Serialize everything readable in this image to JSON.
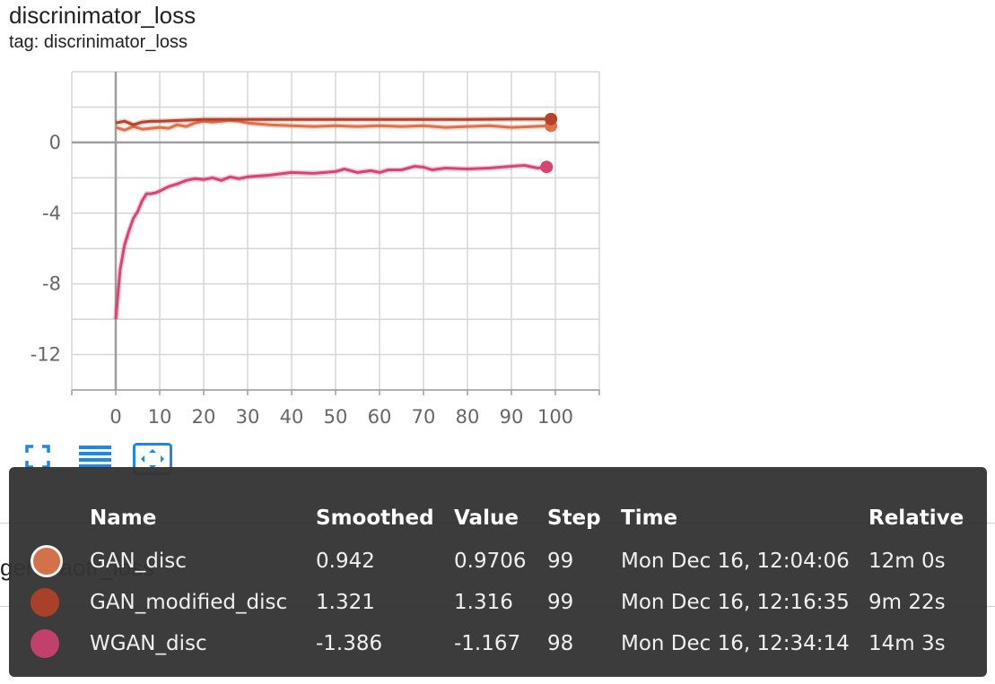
{
  "card": {
    "title": "discrinimator_loss",
    "subtitle": "tag: discrinimator_loss"
  },
  "next_card": {
    "title": "generaotr_loss"
  },
  "toolbar": {
    "icons": [
      "fullscreen-icon",
      "toggle-log-scale-icon",
      "fit-domain-icon"
    ],
    "accent": "#1e88e5"
  },
  "chart_data": {
    "type": "line",
    "title": "",
    "xlabel": "",
    "ylabel": "",
    "xlim": [
      -10,
      110
    ],
    "ylim": [
      -14,
      4
    ],
    "x_ticks": [
      0,
      10,
      20,
      30,
      40,
      50,
      60,
      70,
      80,
      90,
      100
    ],
    "y_ticks": [
      0,
      -4,
      -8,
      -12
    ],
    "grid": true,
    "series": [
      {
        "name": "GAN_disc",
        "color": "#e07048",
        "x": [
          0,
          2,
          4,
          6,
          8,
          10,
          12,
          14,
          16,
          18,
          20,
          22,
          24,
          26,
          28,
          30,
          35,
          40,
          45,
          50,
          55,
          60,
          65,
          70,
          75,
          80,
          85,
          90,
          95,
          99
        ],
        "y": [
          0.85,
          0.7,
          0.9,
          0.75,
          0.8,
          0.85,
          0.8,
          1.0,
          0.9,
          1.1,
          1.2,
          1.15,
          1.2,
          1.25,
          1.2,
          1.1,
          1.0,
          0.95,
          0.9,
          0.95,
          0.9,
          0.95,
          0.9,
          0.95,
          0.85,
          0.9,
          0.95,
          0.85,
          0.9,
          0.942
        ]
      },
      {
        "name": "GAN_modified_disc",
        "color": "#b5432b",
        "x": [
          0,
          2,
          4,
          6,
          8,
          10,
          15,
          20,
          30,
          40,
          50,
          60,
          70,
          80,
          90,
          99
        ],
        "y": [
          1.1,
          1.2,
          1.0,
          1.15,
          1.2,
          1.2,
          1.25,
          1.3,
          1.3,
          1.3,
          1.3,
          1.3,
          1.3,
          1.3,
          1.32,
          1.321
        ]
      },
      {
        "name": "WGAN_disc",
        "color": "#d94472",
        "x": [
          0,
          1,
          2,
          3,
          4,
          5,
          6,
          7,
          8,
          9,
          10,
          12,
          14,
          16,
          18,
          20,
          22,
          24,
          26,
          28,
          30,
          35,
          40,
          45,
          50,
          52,
          55,
          58,
          60,
          62,
          65,
          68,
          70,
          72,
          75,
          80,
          85,
          90,
          93,
          96,
          98
        ],
        "y": [
          -10.0,
          -7.2,
          -5.8,
          -5.0,
          -4.3,
          -3.9,
          -3.3,
          -2.9,
          -2.9,
          -2.85,
          -2.75,
          -2.5,
          -2.35,
          -2.15,
          -2.05,
          -2.1,
          -2.0,
          -2.15,
          -1.95,
          -2.05,
          -1.95,
          -1.85,
          -1.7,
          -1.75,
          -1.65,
          -1.5,
          -1.7,
          -1.6,
          -1.7,
          -1.55,
          -1.55,
          -1.35,
          -1.4,
          -1.55,
          -1.45,
          -1.5,
          -1.45,
          -1.35,
          -1.3,
          -1.45,
          -1.386
        ]
      }
    ]
  },
  "tooltip": {
    "headers": [
      "Name",
      "Smoothed",
      "Value",
      "Step",
      "Time",
      "Relative"
    ],
    "rows": [
      {
        "name": "GAN_disc",
        "color": "#d2714a",
        "smoothed": "0.942",
        "value": "0.9706",
        "step": "99",
        "time": "Mon Dec 16, 12:04:06",
        "relative": "12m 0s"
      },
      {
        "name": "GAN_modified_disc",
        "color": "#a8402a",
        "smoothed": "1.321",
        "value": "1.316",
        "step": "99",
        "time": "Mon Dec 16, 12:16:35",
        "relative": "9m 22s"
      },
      {
        "name": "WGAN_disc",
        "color": "#c2416c",
        "smoothed": "-1.386",
        "value": "-1.167",
        "step": "98",
        "time": "Mon Dec 16, 12:34:14",
        "relative": "14m 3s"
      }
    ]
  }
}
